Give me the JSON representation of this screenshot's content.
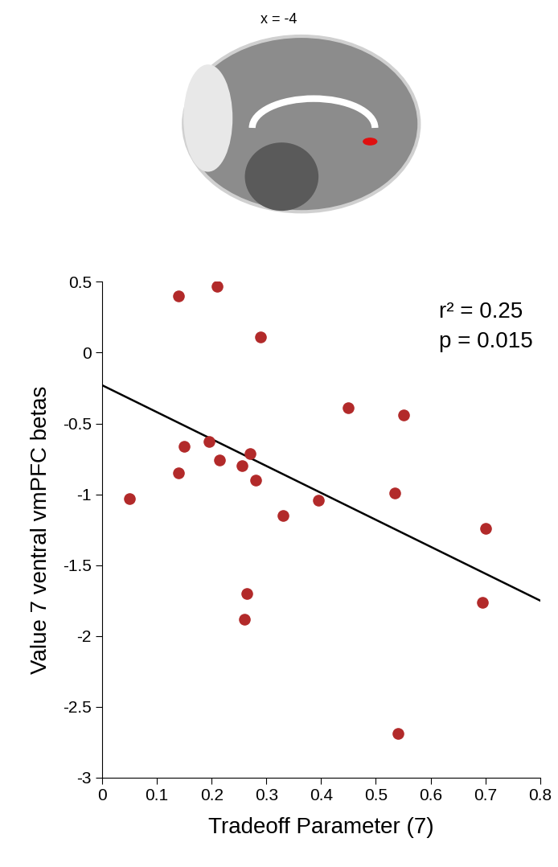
{
  "chart_data": {
    "type": "scatter",
    "image_label": "x = -4",
    "x_label": "Tradeoff Parameter (7)",
    "y_label": "Value 7 ventral vmPFC betas",
    "annotations": [
      "r² = 0.25",
      "p = 0.015"
    ],
    "color": "#b22a2a",
    "marker": "o",
    "x": [
      0.05,
      0.14,
      0.14,
      0.15,
      0.195,
      0.21,
      0.215,
      0.255,
      0.26,
      0.265,
      0.27,
      0.28,
      0.29,
      0.33,
      0.395,
      0.45,
      0.535,
      0.54,
      0.55,
      0.695,
      0.7
    ],
    "values": [
      -1.03,
      0.4,
      -0.85,
      -0.66,
      -0.63,
      0.47,
      -0.76,
      -0.8,
      -1.88,
      -1.7,
      -0.71,
      -0.9,
      0.11,
      -1.15,
      -1.04,
      -0.39,
      -0.99,
      -2.69,
      -0.44,
      -1.76,
      -1.24
    ],
    "trend_line": {
      "x": [
        0,
        0.8
      ],
      "y": [
        -0.23,
        -1.75
      ],
      "color": "#000000"
    },
    "xlim": [
      0,
      0.8
    ],
    "xticks": [
      0,
      0.1,
      0.2,
      0.3,
      0.4,
      0.5,
      0.6,
      0.7,
      0.8
    ],
    "ylim": [
      -3,
      0.5
    ],
    "yticks": [
      -3,
      -2.5,
      -2,
      -1.5,
      -1,
      -0.5,
      0,
      0.5
    ],
    "grid": false
  }
}
